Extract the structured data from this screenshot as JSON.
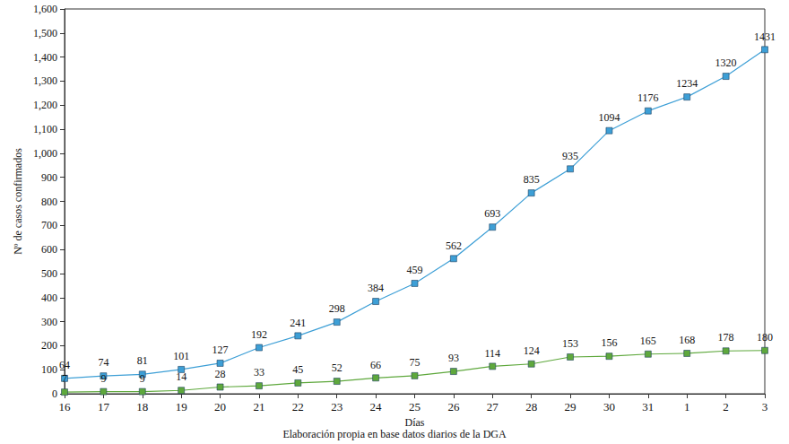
{
  "chart_data": {
    "type": "line",
    "subtitle": "Elaboración propia en base datos diarios de la DGA",
    "x_label": "Días",
    "y_label": "Nº de casos confirmados",
    "categories": [
      "16",
      "17",
      "18",
      "19",
      "20",
      "21",
      "22",
      "23",
      "24",
      "25",
      "26",
      "27",
      "28",
      "29",
      "30",
      "31",
      "1",
      "2",
      "3"
    ],
    "series": [
      {
        "color": "#3d9fd6",
        "marker": "square",
        "values": [
          64,
          74,
          81,
          101,
          127,
          192,
          241,
          298,
          384,
          459,
          562,
          693,
          835,
          935,
          1094,
          1176,
          1234,
          1320,
          1431
        ]
      },
      {
        "color": "#5ea83c",
        "marker": "square",
        "values": [
          7,
          9,
          9,
          14,
          28,
          33,
          45,
          52,
          66,
          75,
          93,
          114,
          124,
          153,
          156,
          165,
          168,
          178,
          180
        ]
      }
    ],
    "ylim": [
      0,
      1600
    ],
    "yticks": [
      0,
      100,
      200,
      300,
      400,
      500,
      600,
      700,
      800,
      900,
      1000,
      1100,
      1200,
      1300,
      1400,
      1500,
      1600
    ],
    "grid": false,
    "data_labels": true
  }
}
